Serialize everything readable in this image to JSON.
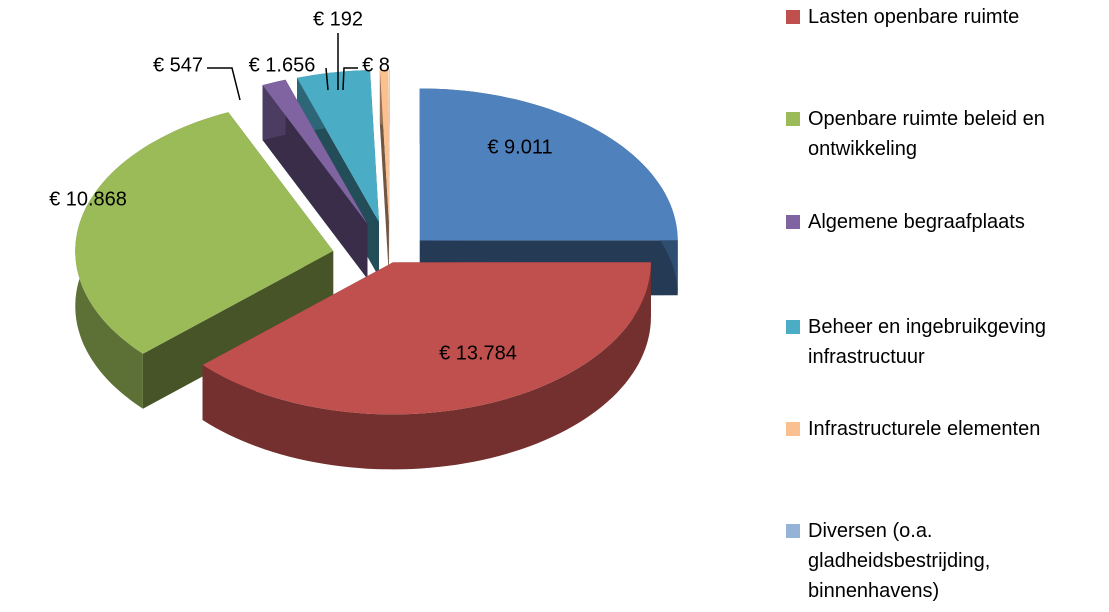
{
  "chart_data": {
    "type": "pie3d",
    "categories": [
      null,
      "Lasten openbare ruimte",
      "Openbare ruimte beleid en ontwikkeling",
      "Algemene begraafplaats",
      "Beheer en ingebruikgeving infrastructuur",
      "Infrastructurele elementen",
      "Diversen (o.a. gladheidsbestrijding, binnenhavens)"
    ],
    "values": [
      9011,
      13784,
      10868,
      547,
      1656,
      192,
      8
    ],
    "value_labels": [
      "€ 9.011",
      "€ 13.784",
      "€ 10.868",
      "€ 547",
      "€ 1.656",
      "€ 192",
      "€ 8"
    ],
    "colors": [
      "#4f81bd",
      "#c0504d",
      "#9bbb59",
      "#8064a2",
      "#4bacc6",
      "#fac090",
      "#95b3d7"
    ],
    "legend": "right"
  }
}
